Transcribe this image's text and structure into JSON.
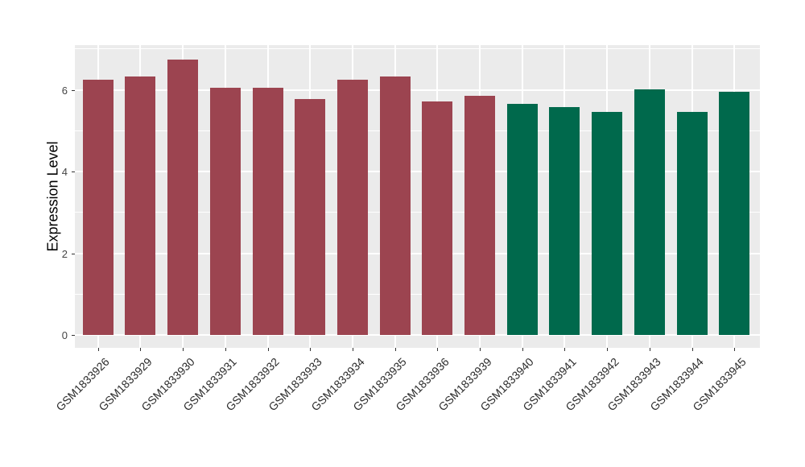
{
  "chart_data": {
    "type": "bar",
    "title": "",
    "xlabel": "",
    "ylabel": "Expression Level",
    "categories": [
      "GSM1833926",
      "GSM1833929",
      "GSM1833930",
      "GSM1833931",
      "GSM1833932",
      "GSM1833933",
      "GSM1833934",
      "GSM1833935",
      "GSM1833936",
      "GSM1833939",
      "GSM1833940",
      "GSM1833941",
      "GSM1833942",
      "GSM1833943",
      "GSM1833944",
      "GSM1833945"
    ],
    "values": [
      6.25,
      6.32,
      6.75,
      6.05,
      6.06,
      5.78,
      6.25,
      6.33,
      5.72,
      5.86,
      5.66,
      5.58,
      5.46,
      6.01,
      5.46,
      5.96
    ],
    "bar_groups": [
      0,
      0,
      0,
      0,
      0,
      0,
      0,
      0,
      0,
      0,
      1,
      1,
      1,
      1,
      1,
      1
    ],
    "group_colors": [
      "#9C4450",
      "#00694C"
    ],
    "y_major_ticks": [
      0,
      2,
      4,
      6
    ],
    "y_minor_ticks": [
      1,
      3,
      5,
      7
    ],
    "ylim": [
      -0.34,
      7.1
    ],
    "grid": true,
    "legend": "none",
    "panel_background": "#EBEBEB",
    "grid_color": "#FFFFFF",
    "axis_text_color": "#454545",
    "tick_mark_color": "#333333"
  }
}
